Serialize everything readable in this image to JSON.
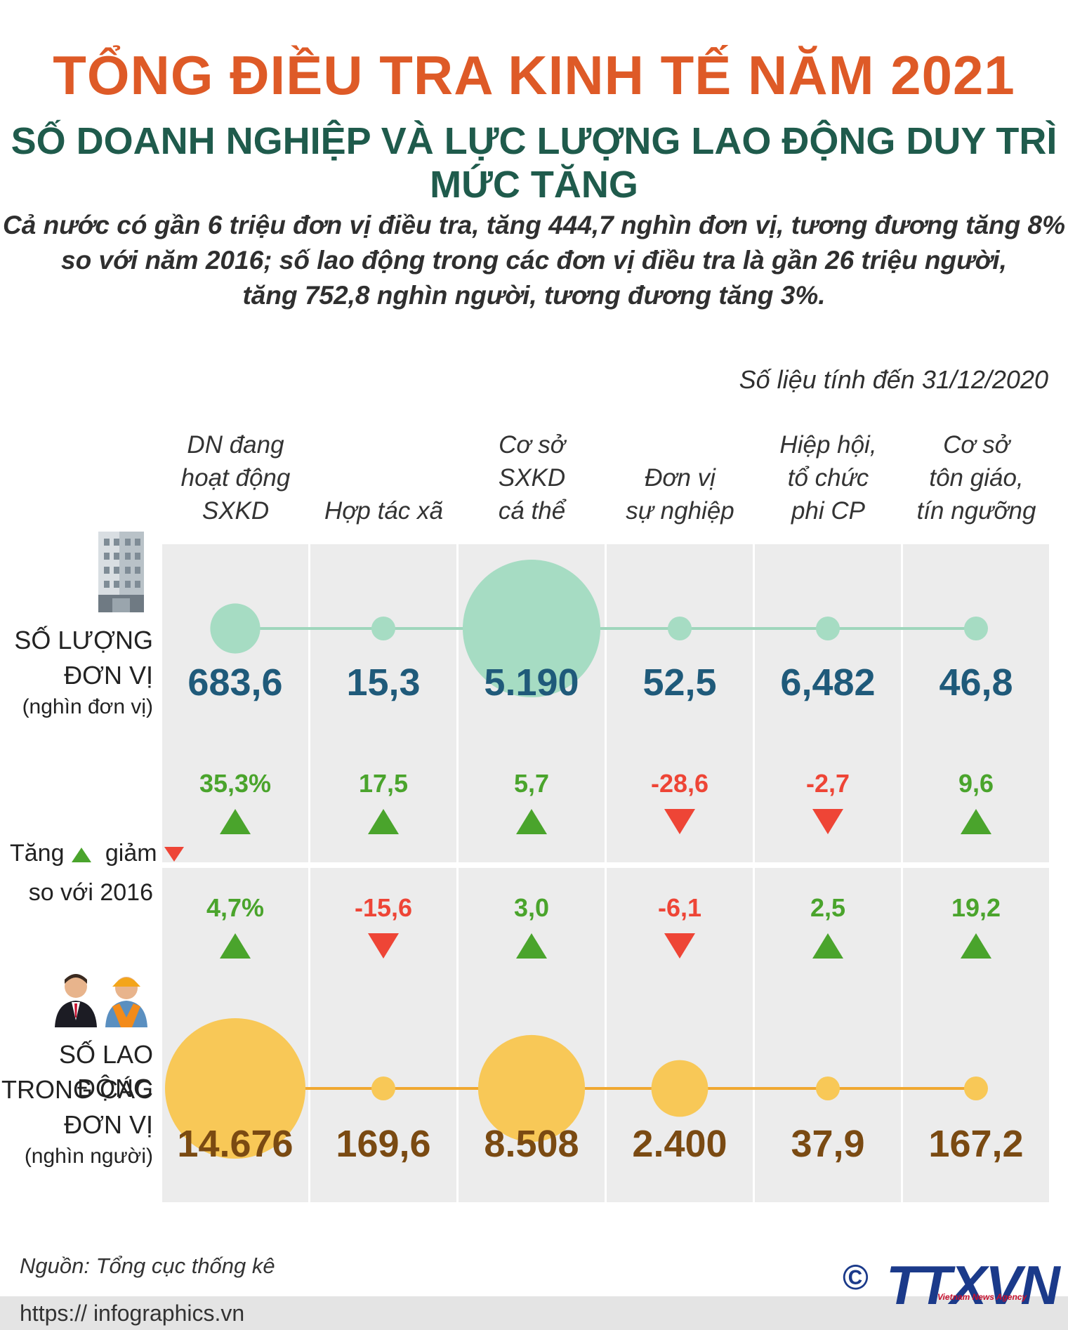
{
  "title": "TỔNG ĐIỀU TRA KINH TẾ NĂM 2021",
  "subtitle": "SỐ DOANH NGHIỆP VÀ LỰC LƯỢNG LAO ĐỘNG DUY TRÌ MỨC TĂNG",
  "intro": {
    "line1": "Cả nước có gần 6 triệu đơn vị điều tra, tăng 444,7 nghìn đơn vị, tương đương tăng 8%",
    "line2": "so với năm 2016; số lao động trong các đơn vị điều tra là gần 26 triệu người,",
    "line3": "tăng 752,8 nghìn người, tương đương tăng 3%."
  },
  "as_of": "Số liệu tính đến 31/12/2020",
  "row_labels": {
    "units_line1": "SỐ LƯỢNG",
    "units_line2": "ĐƠN VỊ",
    "units_unit": "(nghìn đơn vị)",
    "change_line1_a": "Tăng",
    "change_line1_b": "giảm",
    "change_line2": "so với 2016",
    "labor_line1": "SỐ LAO ĐỘNG",
    "labor_line2": "TRONG CÁC",
    "labor_line3": "ĐƠN VỊ",
    "labor_unit": "(nghìn người)"
  },
  "source": "Nguồn: Tổng cục thống kê",
  "url": "https:// infographics.vn",
  "logo": {
    "copyright": "©",
    "name": "TTXVN",
    "agency": "Vietnam News Agency"
  },
  "colors": {
    "title": "#de5a27",
    "subtitle": "#1f5b4c",
    "units_bubble": "#a6dcc3",
    "units_line": "#9fd6bc",
    "units_value": "#1f5a7a",
    "labor_bubble": "#f8c857",
    "labor_line": "#f0a830",
    "labor_value": "#7a4a12",
    "up": "#4aa42c",
    "down": "#ee4536"
  },
  "chart_data": {
    "type": "bubble",
    "title": "TỔNG ĐIỀU TRA KINH TẾ NĂM 2021",
    "categories": [
      [
        "DN đang",
        "hoạt động",
        "SXKD"
      ],
      [
        "Hợp tác xã"
      ],
      [
        "Cơ sở",
        "SXKD",
        "cá thể"
      ],
      [
        "Đơn vị",
        "sự nghiệp"
      ],
      [
        "Hiệp hội,",
        "tổ chức",
        "phi CP"
      ],
      [
        "Cơ sở",
        "tôn giáo,",
        "tín ngưỡng"
      ]
    ],
    "series": [
      {
        "name": "Số lượng đơn vị (nghìn đơn vị)",
        "values": [
          683.6,
          15.3,
          5190,
          52.5,
          6.482,
          46.8
        ],
        "labels": [
          "683,6",
          "15,3",
          "5.190",
          "52,5",
          "6,482",
          "46,8"
        ],
        "change_vs_2016": [
          {
            "label": "35,3%",
            "dir": "up"
          },
          {
            "label": "17,5",
            "dir": "up"
          },
          {
            "label": "5,7",
            "dir": "up"
          },
          {
            "label": "-28,6",
            "dir": "down"
          },
          {
            "label": "-2,7",
            "dir": "down"
          },
          {
            "label": "9,6",
            "dir": "up"
          }
        ]
      },
      {
        "name": "Số lao động trong các đơn vị (nghìn người)",
        "values": [
          14676,
          169.6,
          8508,
          2400,
          37.9,
          167.2
        ],
        "labels": [
          "14.676",
          "169,6",
          "8.508",
          "2.400",
          "37,9",
          "167,2"
        ],
        "change_vs_2016": [
          {
            "label": "4,7%",
            "dir": "up"
          },
          {
            "label": "-15,6",
            "dir": "down"
          },
          {
            "label": "3,0",
            "dir": "up"
          },
          {
            "label": "-6,1",
            "dir": "down"
          },
          {
            "label": "2,5",
            "dir": "up"
          },
          {
            "label": "19,2",
            "dir": "up"
          }
        ]
      }
    ]
  }
}
